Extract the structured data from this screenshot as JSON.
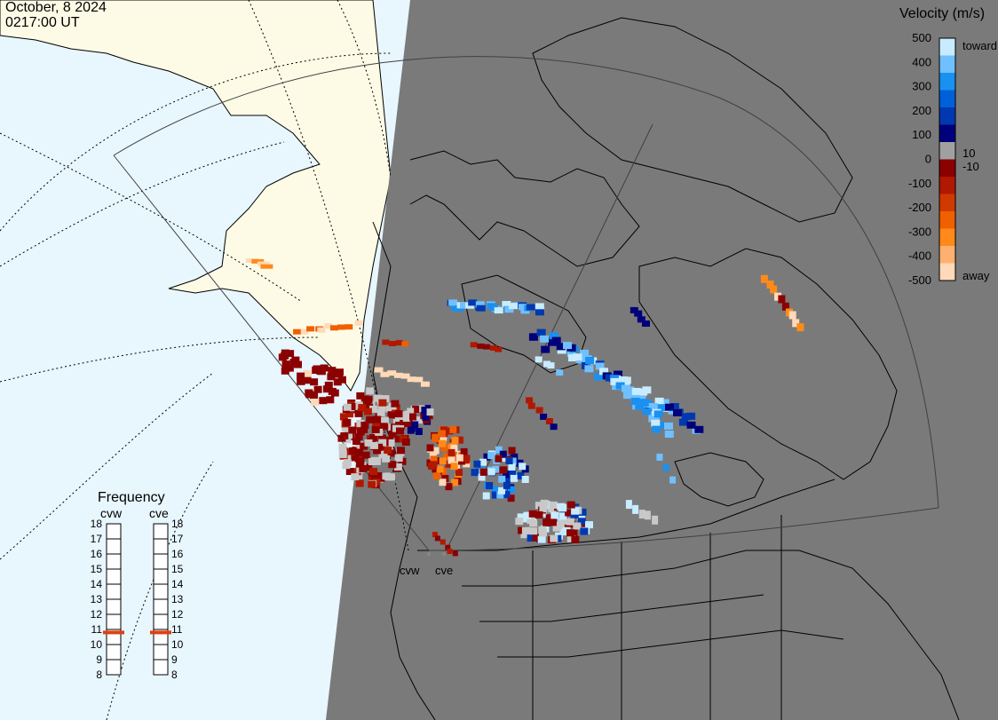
{
  "header": {
    "date": "October, 8 2024",
    "time": "0217:00 UT"
  },
  "velocity_scale": {
    "title": "Velocity (m/s)",
    "ticks": [
      "500",
      "400",
      "300",
      "200",
      "100",
      "0",
      "-100",
      "-200",
      "-300",
      "-400",
      "-500"
    ],
    "small_ticks": [
      "10",
      "-10"
    ],
    "toward_label": "toward",
    "away_label": "away",
    "colors": [
      "#ffd9b8",
      "#ffb070",
      "#ff8a1a",
      "#f06000",
      "#d03a00",
      "#b01800",
      "#8b0000",
      "#a0a0a0",
      "#00007a",
      "#0038b0",
      "#0060d8",
      "#1a90f0",
      "#70c0ff",
      "#c8ecff"
    ]
  },
  "frequency": {
    "title": "Frequency",
    "radars": [
      {
        "name": "cvw",
        "value": 10.8
      },
      {
        "name": "cve",
        "value": 10.8
      }
    ],
    "ticks": [
      "18",
      "17",
      "16",
      "15",
      "14",
      "13",
      "12",
      "11",
      "10",
      "9",
      "8"
    ],
    "marker_color": "#e04010"
  },
  "radar_sites": [
    {
      "name": "cvw"
    },
    {
      "name": "cve"
    }
  ],
  "colors": {
    "night_shade": "#7a7a7a",
    "day_land": "#fdfbe6",
    "day_ocean": "#e8f6fe",
    "ground_scatter": "#c8c8c8"
  }
}
